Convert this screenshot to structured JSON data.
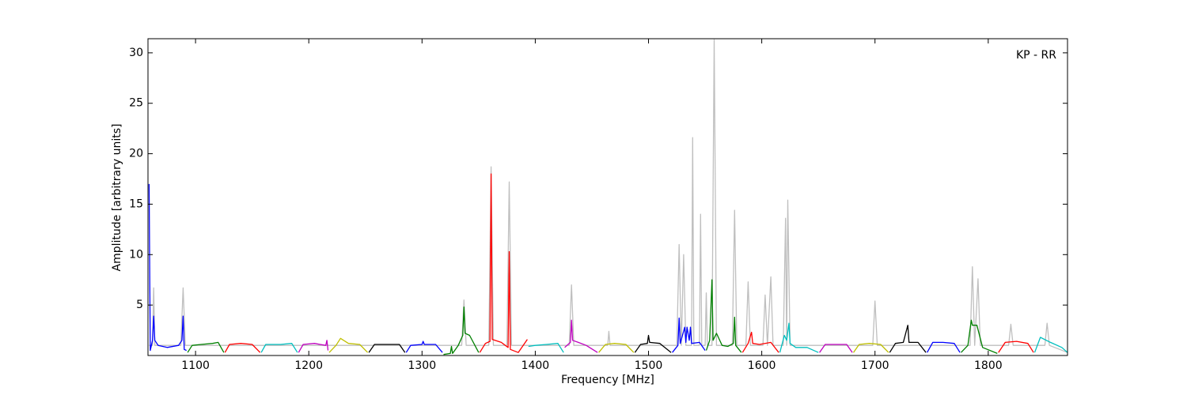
{
  "chart_data": {
    "type": "line",
    "x_label": "Frequency [MHz]",
    "y_label": "Amplitude [arbitrary units]",
    "annotation": "KP - RR",
    "xlim": [
      1058,
      1870
    ],
    "ylim": [
      0,
      31.4
    ],
    "xticks": [
      1100,
      1200,
      1300,
      1400,
      1500,
      1600,
      1700,
      1800
    ],
    "yticks": [
      5,
      10,
      15,
      20,
      25,
      30
    ],
    "grid": false,
    "series": [
      {
        "color": "#bfbfbf",
        "x": [
          1059,
          1062,
          1063,
          1064,
          1087,
          1089,
          1091,
          1335,
          1337,
          1339,
          1359,
          1361,
          1363,
          1375,
          1377,
          1379,
          1430,
          1432,
          1434,
          1464,
          1465,
          1466,
          1525,
          1527,
          1529,
          1531,
          1533,
          1538,
          1539,
          1540,
          1545,
          1546,
          1547,
          1550,
          1551,
          1552,
          1556,
          1558,
          1560,
          1574,
          1576,
          1578,
          1586,
          1588,
          1590,
          1601,
          1603,
          1605,
          1608,
          1610,
          1619,
          1621,
          1622,
          1623,
          1625,
          1698,
          1700,
          1702,
          1784,
          1786,
          1788,
          1791,
          1793,
          1818,
          1820,
          1822,
          1850,
          1852,
          1854,
          1870
        ],
        "values": [
          1,
          1,
          6.7,
          1,
          1,
          6.7,
          1,
          1,
          5.5,
          1,
          1,
          18.7,
          1,
          1,
          17.2,
          1,
          1,
          7.0,
          1,
          1,
          2.4,
          1,
          1,
          11,
          1,
          10,
          1,
          1,
          21.6,
          1,
          1,
          14,
          1,
          1,
          6.2,
          1,
          1,
          31.3,
          1,
          1,
          14.4,
          1,
          1,
          7.3,
          1,
          1,
          6.0,
          1,
          7.8,
          1,
          1,
          13.6,
          1,
          15.4,
          1,
          1,
          5.4,
          1,
          1,
          8.8,
          1,
          7.6,
          1,
          1,
          3.1,
          1,
          1,
          3.2,
          1,
          0.3
        ]
      },
      {
        "color": "#0000ff",
        "x": [
          1059,
          1060,
          1062,
          1063,
          1064,
          1067,
          1075,
          1085,
          1088,
          1089,
          1090,
          1092
        ],
        "values": [
          17,
          0.5,
          1.5,
          3.9,
          1.5,
          1.0,
          0.8,
          1.0,
          1.5,
          3.9,
          0.6,
          0.5
        ]
      },
      {
        "color": "#008000",
        "x": [
          1093,
          1097,
          1105,
          1115,
          1120,
          1125
        ],
        "values": [
          0.3,
          1.0,
          1.1,
          1.2,
          1.3,
          0.3
        ]
      },
      {
        "color": "#ff0000",
        "x": [
          1126,
          1130,
          1140,
          1150,
          1157
        ],
        "values": [
          0.3,
          1.1,
          1.2,
          1.1,
          0.3
        ]
      },
      {
        "color": "#00bfbf",
        "x": [
          1158,
          1162,
          1175,
          1185,
          1190
        ],
        "values": [
          0.3,
          1.1,
          1.1,
          1.2,
          0.3
        ]
      },
      {
        "color": "#bf00bf",
        "x": [
          1191,
          1195,
          1205,
          1210,
          1215,
          1216,
          1217
        ],
        "values": [
          0.3,
          1.1,
          1.2,
          1.1,
          1.0,
          1.5,
          0.5
        ]
      },
      {
        "color": "#bfbf00",
        "x": [
          1218,
          1224,
          1228,
          1235,
          1245,
          1252
        ],
        "values": [
          0.3,
          1.0,
          1.7,
          1.2,
          1.1,
          0.3
        ]
      },
      {
        "color": "#000000",
        "x": [
          1253,
          1258,
          1270,
          1280,
          1285
        ],
        "values": [
          0.3,
          1.1,
          1.1,
          1.1,
          0.3
        ]
      },
      {
        "color": "#0000ff",
        "x": [
          1286,
          1290,
          1300,
          1301,
          1302,
          1312,
          1318
        ],
        "values": [
          0.3,
          1.0,
          1.1,
          1.4,
          1.1,
          1.1,
          0.3
        ]
      },
      {
        "color": "#008000",
        "x": [
          1319,
          1325,
          1326,
          1327,
          1332,
          1336,
          1337,
          1338,
          1342,
          1350
        ],
        "values": [
          0.1,
          0.2,
          0.9,
          0.2,
          1.0,
          2.0,
          4.8,
          2.2,
          2.0,
          0.3
        ]
      },
      {
        "color": "#ff0000",
        "x": [
          1351,
          1356,
          1360,
          1361,
          1362,
          1370,
          1376,
          1377,
          1378,
          1385,
          1393
        ],
        "values": [
          0.3,
          1.2,
          1.4,
          18,
          1.6,
          1.3,
          0.8,
          10.3,
          0.6,
          0.3,
          1.6
        ]
      },
      {
        "color": "#00bfbf",
        "x": [
          1394,
          1400,
          1410,
          1420,
          1425
        ],
        "values": [
          0.9,
          1.0,
          1.1,
          1.2,
          0.3
        ]
      },
      {
        "color": "#bf00bf",
        "x": [
          1426,
          1431,
          1432,
          1433,
          1438,
          1445,
          1455
        ],
        "values": [
          0.8,
          1.3,
          3.5,
          1.5,
          1.3,
          1.0,
          0.3
        ]
      },
      {
        "color": "#bfbf00",
        "x": [
          1456,
          1462,
          1470,
          1480,
          1487
        ],
        "values": [
          0.3,
          1.1,
          1.2,
          1.1,
          0.3
        ]
      },
      {
        "color": "#000000",
        "x": [
          1488,
          1493,
          1499,
          1500,
          1501,
          1510,
          1520
        ],
        "values": [
          0.3,
          1.1,
          1.2,
          2.0,
          1.3,
          1.2,
          0.3
        ]
      },
      {
        "color": "#0000ff",
        "x": [
          1521,
          1526,
          1527,
          1528,
          1532,
          1533,
          1534,
          1536,
          1537,
          1538,
          1545,
          1550
        ],
        "values": [
          0.3,
          1.0,
          3.7,
          1.2,
          2.8,
          1.3,
          2.8,
          1.5,
          2.8,
          1.2,
          1.3,
          0.5
        ]
      },
      {
        "color": "#008000",
        "x": [
          1551,
          1554,
          1556,
          1557,
          1560,
          1565,
          1570,
          1575,
          1576,
          1577,
          1582
        ],
        "values": [
          0.5,
          1.5,
          7.5,
          1.5,
          2.2,
          1.0,
          0.9,
          1.2,
          3.8,
          1.0,
          0.3
        ]
      },
      {
        "color": "#ff0000",
        "x": [
          1583,
          1588,
          1591,
          1592,
          1598,
          1608,
          1615
        ],
        "values": [
          0.3,
          1.2,
          2.3,
          1.2,
          1.1,
          1.3,
          0.3
        ]
      },
      {
        "color": "#00bfbf",
        "x": [
          1616,
          1620,
          1622,
          1624,
          1625,
          1630,
          1640,
          1650
        ],
        "values": [
          0.3,
          2.0,
          1.5,
          3.2,
          1.2,
          0.8,
          0.8,
          0.3
        ]
      },
      {
        "color": "#bf00bf",
        "x": [
          1651,
          1656,
          1665,
          1675,
          1680
        ],
        "values": [
          0.3,
          1.1,
          1.1,
          1.1,
          0.3
        ]
      },
      {
        "color": "#bfbf00",
        "x": [
          1681,
          1686,
          1695,
          1705,
          1712
        ],
        "values": [
          0.3,
          1.1,
          1.2,
          1.1,
          0.3
        ]
      },
      {
        "color": "#000000",
        "x": [
          1713,
          1718,
          1725,
          1729,
          1730,
          1738,
          1745
        ],
        "values": [
          0.3,
          1.2,
          1.3,
          3.0,
          1.3,
          1.3,
          0.3
        ]
      },
      {
        "color": "#0000ff",
        "x": [
          1746,
          1751,
          1760,
          1770,
          1775
        ],
        "values": [
          0.3,
          1.3,
          1.3,
          1.2,
          0.3
        ]
      },
      {
        "color": "#008000",
        "x": [
          1776,
          1782,
          1785,
          1786,
          1790,
          1795,
          1808
        ],
        "values": [
          0.3,
          1.0,
          3.5,
          3.0,
          3.0,
          0.8,
          0.2
        ]
      },
      {
        "color": "#ff0000",
        "x": [
          1809,
          1815,
          1825,
          1835,
          1840
        ],
        "values": [
          0.3,
          1.3,
          1.4,
          1.2,
          0.3
        ]
      },
      {
        "color": "#00bfbf",
        "x": [
          1841,
          1846,
          1855,
          1865,
          1870
        ],
        "values": [
          0.3,
          1.8,
          1.3,
          0.8,
          0.3
        ]
      }
    ]
  }
}
